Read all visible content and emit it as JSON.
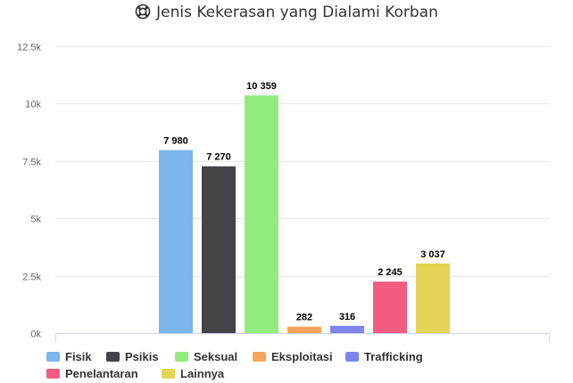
{
  "title": "Jenis Kekerasan yang Dialami Korban",
  "title_icon": "lifebuoy-icon",
  "chart_data": {
    "type": "bar",
    "title": "Jenis Kekerasan yang Dialami Korban",
    "xlabel": "",
    "ylabel": "",
    "ylim": [
      0,
      12500
    ],
    "y_ticks": [
      0,
      2500,
      5000,
      7500,
      10000,
      12500
    ],
    "y_tick_labels": [
      "0k",
      "2.5k",
      "5k",
      "7.5k",
      "10k",
      "12.5k"
    ],
    "grid": true,
    "legend_position": "bottom-left",
    "series": [
      {
        "name": "Fisik",
        "value": 7980,
        "label": "7 980",
        "color": "#7cb5ec"
      },
      {
        "name": "Psikis",
        "value": 7270,
        "label": "7 270",
        "color": "#434348"
      },
      {
        "name": "Seksual",
        "value": 10359,
        "label": "10 359",
        "color": "#90ed7d"
      },
      {
        "name": "Eksploitasi",
        "value": 282,
        "label": "282",
        "color": "#f7a35c"
      },
      {
        "name": "Trafficking",
        "value": 316,
        "label": "316",
        "color": "#8085e9"
      },
      {
        "name": "Penelantaran",
        "value": 2245,
        "label": "2 245",
        "color": "#f15c80"
      },
      {
        "name": "Lainnya",
        "value": 3037,
        "label": "3 037",
        "color": "#e4d354"
      }
    ]
  }
}
